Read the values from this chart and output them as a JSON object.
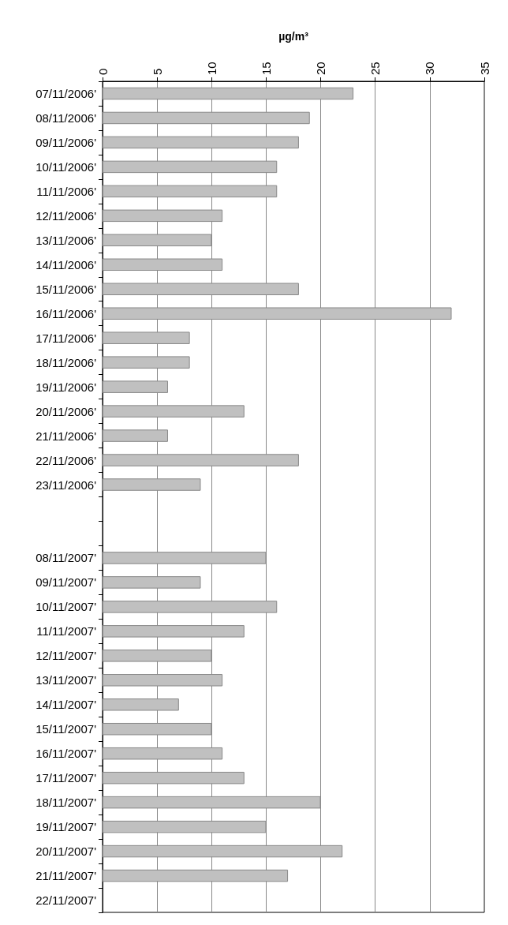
{
  "chart_data": {
    "type": "bar",
    "orientation": "horizontal",
    "xlabel": "µg/m³",
    "categories": [
      "07/11/2006'",
      "08/11/2006'",
      "09/11/2006'",
      "10/11/2006'",
      "11/11/2006'",
      "12/11/2006'",
      "13/11/2006'",
      "14/11/2006'",
      "15/11/2006'",
      "16/11/2006'",
      "17/11/2006'",
      "18/11/2006'",
      "19/11/2006'",
      "20/11/2006'",
      "21/11/2006'",
      "22/11/2006'",
      "23/11/2006'",
      null,
      null,
      "08/11/2007'",
      "09/11/2007'",
      "10/11/2007'",
      "11/11/2007'",
      "12/11/2007'",
      "13/11/2007'",
      "14/11/2007'",
      "15/11/2007'",
      "16/11/2007'",
      "17/11/2007'",
      "18/11/2007'",
      "19/11/2007'",
      "20/11/2007'",
      "21/11/2007'",
      "22/11/2007'"
    ],
    "values": [
      23,
      19,
      18,
      16,
      16,
      11,
      10,
      11,
      18,
      32,
      8,
      8,
      6,
      13,
      6,
      18,
      9,
      null,
      null,
      15,
      9,
      16,
      13,
      10,
      11,
      7,
      10,
      11,
      13,
      20,
      15,
      22,
      17,
      null
    ],
    "color": "#c0c0c0",
    "xlim": [
      0,
      35
    ],
    "xticks": [
      0,
      5,
      10,
      15,
      20,
      25,
      30,
      35
    ],
    "grid": "x"
  }
}
